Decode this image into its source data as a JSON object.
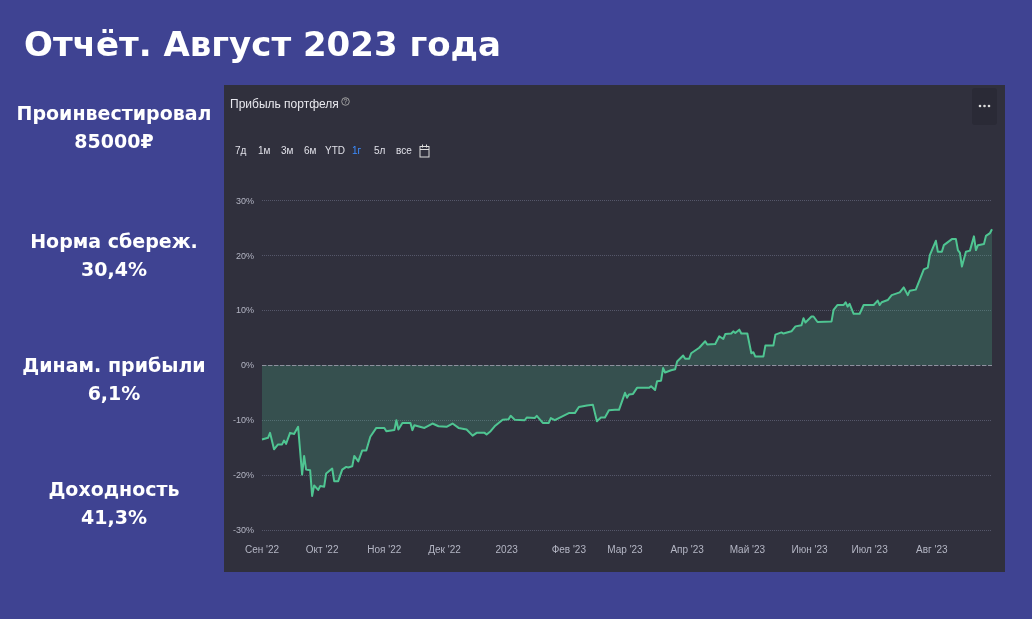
{
  "chart_data": {
    "type": "area",
    "title": "Отчёт. Август 2023 года",
    "subtitle": "Прибыль портфеля",
    "annotations": [
      "Проинвестировал",
      "85000₽",
      "Норма сбереж.",
      "30,4%",
      "Динам. прибыли",
      "6,1%",
      "Доходность",
      "41,3%",
      "7д",
      "1м",
      "3м",
      "6м",
      "YTD",
      "1г",
      "5л",
      "все"
    ],
    "x": [
      "2022-09-01",
      "2022-09-04",
      "2022-09-05",
      "2022-09-07",
      "2022-09-09",
      "2022-09-11",
      "2022-09-12",
      "2022-09-13",
      "2022-09-15",
      "2022-09-17",
      "2022-09-19",
      "2022-09-21",
      "2022-09-22",
      "2022-09-23",
      "2022-09-25",
      "2022-09-26",
      "2022-09-27",
      "2022-09-29",
      "2022-09-30",
      "2022-10-02",
      "2022-10-03",
      "2022-10-06",
      "2022-10-07",
      "2022-10-09",
      "2022-10-11",
      "2022-10-13",
      "2022-10-14",
      "2022-10-16",
      "2022-10-17",
      "2022-10-19",
      "2022-10-21",
      "2022-10-23",
      "2022-10-25",
      "2022-10-28",
      "2022-11-01",
      "2022-11-02",
      "2022-11-06",
      "2022-11-07",
      "2022-11-08",
      "2022-11-10",
      "2022-11-14",
      "2022-11-15",
      "2022-11-16",
      "2022-11-21",
      "2022-11-25",
      "2022-11-28",
      "2022-12-02",
      "2022-12-05",
      "2022-12-08",
      "2022-12-12",
      "2022-12-15",
      "2022-12-17",
      "2022-12-21",
      "2022-12-22",
      "2022-12-24",
      "2022-12-26",
      "2022-12-30",
      "2023-01-02",
      "2023-01-03",
      "2023-01-05",
      "2023-01-10",
      "2023-01-11",
      "2023-01-15",
      "2023-01-16",
      "2023-01-19",
      "2023-01-22",
      "2023-01-23",
      "2023-01-25",
      "2023-01-27",
      "2023-02-01",
      "2023-02-04",
      "2023-02-06",
      "2023-02-10",
      "2023-02-13",
      "2023-02-15",
      "2023-02-17",
      "2023-02-19",
      "2023-02-21",
      "2023-02-24",
      "2023-02-26",
      "2023-03-01",
      "2023-03-02",
      "2023-03-03",
      "2023-03-05",
      "2023-03-07",
      "2023-03-13",
      "2023-03-14",
      "2023-03-16",
      "2023-03-17",
      "2023-03-19",
      "2023-03-20",
      "2023-03-21",
      "2023-03-24",
      "2023-03-26",
      "2023-03-27",
      "2023-03-30",
      "2023-03-31",
      "2023-04-02",
      "2023-04-03",
      "2023-04-05",
      "2023-04-07",
      "2023-04-10",
      "2023-04-11",
      "2023-04-15",
      "2023-04-17",
      "2023-04-19",
      "2023-04-20",
      "2023-04-23",
      "2023-04-24",
      "2023-04-25",
      "2023-04-27",
      "2023-04-28",
      "2023-05-01",
      "2023-05-03",
      "2023-05-04",
      "2023-05-05",
      "2023-05-09",
      "2023-05-10",
      "2023-05-14",
      "2023-05-15",
      "2023-05-18",
      "2023-05-19",
      "2023-05-23",
      "2023-05-25",
      "2023-05-28",
      "2023-05-29",
      "2023-05-30",
      "2023-06-02",
      "2023-06-03",
      "2023-06-05",
      "2023-06-12",
      "2023-06-13",
      "2023-06-15",
      "2023-06-18",
      "2023-06-19",
      "2023-06-20",
      "2023-06-21",
      "2023-06-23",
      "2023-06-26",
      "2023-06-28",
      "2023-07-03",
      "2023-07-05",
      "2023-07-06",
      "2023-07-07",
      "2023-07-10",
      "2023-07-12",
      "2023-07-16",
      "2023-07-18",
      "2023-07-20",
      "2023-07-21",
      "2023-07-24",
      "2023-07-26",
      "2023-07-28",
      "2023-07-30",
      "2023-07-31",
      "2023-08-03",
      "2023-08-04",
      "2023-08-06",
      "2023-08-07",
      "2023-08-11",
      "2023-08-13",
      "2023-08-14",
      "2023-08-15",
      "2023-08-16",
      "2023-08-18",
      "2023-08-20",
      "2023-08-22",
      "2023-08-23",
      "2023-08-24",
      "2023-08-27",
      "2023-08-28",
      "2023-08-30",
      "2023-08-31"
    ],
    "series": [
      {
        "color": "#4fc592",
        "values": [
          -13.5,
          -13.2,
          -12.3,
          -15.3,
          -14.4,
          -14.4,
          -13.7,
          -14.3,
          -12.3,
          -12.5,
          -11.2,
          -19.9,
          -16.5,
          -19.0,
          -19.1,
          -23.8,
          -21.9,
          -22.7,
          -22.0,
          -22.1,
          -19.7,
          -18.8,
          -21.1,
          -21.1,
          -19.0,
          -18.5,
          -18.6,
          -18.4,
          -16.5,
          -17.5,
          -15.5,
          -15.5,
          -13.0,
          -11.4,
          -11.4,
          -12.0,
          -11.8,
          -10.0,
          -11.7,
          -10.5,
          -10.5,
          -11.8,
          -10.9,
          -11.4,
          -10.6,
          -11.1,
          -11.2,
          -10.6,
          -11.4,
          -11.7,
          -12.8,
          -12.3,
          -12.3,
          -12.6,
          -12.0,
          -11.1,
          -9.9,
          -9.8,
          -9.2,
          -9.9,
          -10.0,
          -9.5,
          -9.6,
          -9.2,
          -10.5,
          -10.5,
          -9.6,
          -10.0,
          -9.6,
          -8.7,
          -8.7,
          -7.6,
          -7.3,
          -7.2,
          -10.2,
          -9.5,
          -9.5,
          -8.2,
          -8.1,
          -8.1,
          -5.0,
          -5.9,
          -5.3,
          -5.2,
          -4.1,
          -4.1,
          -3.8,
          -4.5,
          -2.9,
          -2.8,
          -0.5,
          -1.3,
          -0.9,
          -0.7,
          0.7,
          1.8,
          1.2,
          1.2,
          2.2,
          2.7,
          3.2,
          4.4,
          3.8,
          3.9,
          5.3,
          4.8,
          5.7,
          5.8,
          6.2,
          5.9,
          6.5,
          5.8,
          5.8,
          2.2,
          2.4,
          1.6,
          1.6,
          3.6,
          3.6,
          5.6,
          6.0,
          5.8,
          6.2,
          7.1,
          7.3,
          8.6,
          7.8,
          8.9,
          8.9,
          7.9,
          8.0,
          10.1,
          11.0,
          11.0,
          11.5,
          10.7,
          11.2,
          9.4,
          9.4,
          11.0,
          11.0,
          11.8,
          11.0,
          11.5,
          11.9,
          12.8,
          13.3,
          14.2,
          12.8,
          13.6,
          13.8,
          15.6,
          17.5,
          17.8,
          20.1,
          22.7,
          20.7,
          20.7,
          21.9,
          23.0,
          23.0,
          21.0,
          20.5,
          18.0,
          20.7,
          20.9,
          23.5,
          21.0,
          21.9,
          22.1,
          23.6,
          24.1,
          24.8
        ]
      }
    ],
    "xlim": [
      "2022-09-01",
      "2023-08-31"
    ],
    "xticks": [
      {
        "value": "2022-09-01",
        "label": "Сен '22"
      },
      {
        "value": "2022-10-01",
        "label": "Окт '22"
      },
      {
        "value": "2022-11-01",
        "label": "Ноя '22"
      },
      {
        "value": "2022-12-01",
        "label": "Дек '22"
      },
      {
        "value": "2023-01-01",
        "label": "2023"
      },
      {
        "value": "2023-02-01",
        "label": "Фев '23"
      },
      {
        "value": "2023-03-01",
        "label": "Мар '23"
      },
      {
        "value": "2023-04-01",
        "label": "Апр '23"
      },
      {
        "value": "2023-05-01",
        "label": "Май '23"
      },
      {
        "value": "2023-06-01",
        "label": "Июн '23"
      },
      {
        "value": "2023-07-01",
        "label": "Июл '23"
      },
      {
        "value": "2023-08-01",
        "label": "Авг '23"
      }
    ],
    "ylim": [
      -30,
      30
    ],
    "yticks": [
      {
        "value": -30,
        "label": "-30%"
      },
      {
        "value": -20,
        "label": "-20%"
      },
      {
        "value": -10,
        "label": "-10%"
      },
      {
        "value": 0,
        "label": "0%"
      },
      {
        "value": 10,
        "label": "10%"
      },
      {
        "value": 20,
        "label": "20%"
      },
      {
        "value": 30,
        "label": "30%"
      }
    ],
    "grid": "y",
    "ref_lines": [
      {
        "axis": "y",
        "value": 0,
        "color": "#8e909e",
        "line_style": "dashed"
      }
    ]
  }
}
